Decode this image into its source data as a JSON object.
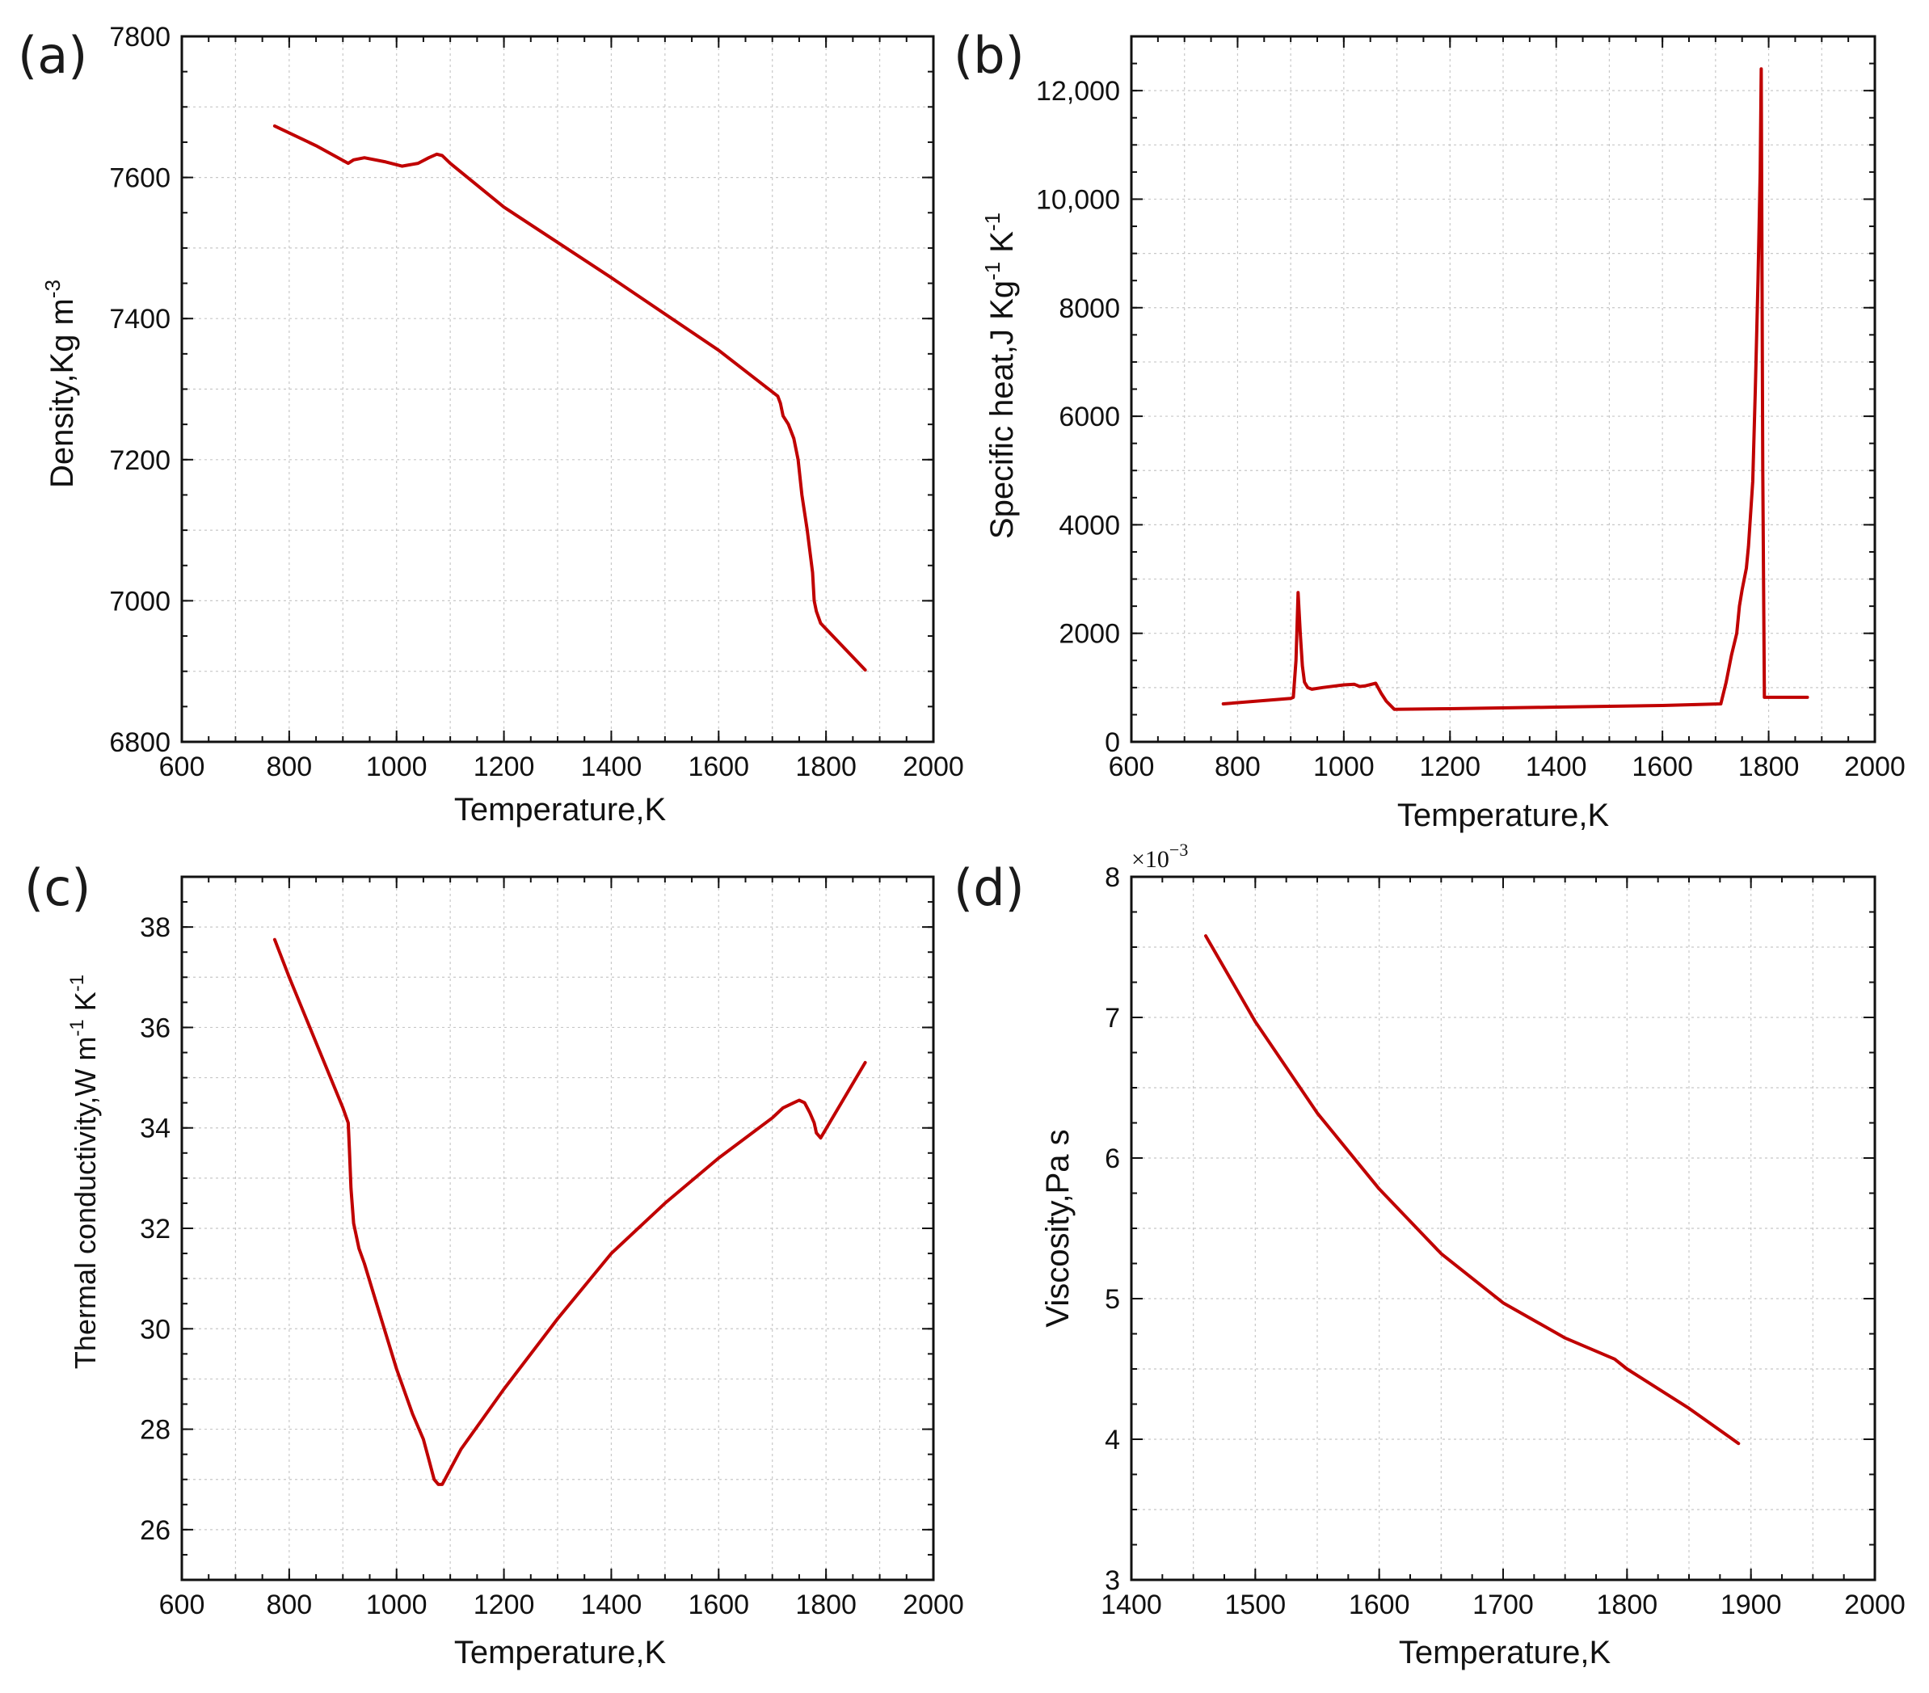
{
  "colors": {
    "series": "#c00000",
    "axis": "#111111",
    "grid": "#c8c8c8"
  },
  "chart_data": [
    {
      "id": "a",
      "panel_label": "(a)",
      "type": "line",
      "title": "",
      "xlabel": "Temperature,K",
      "ylabel": {
        "base": "Density,Kg m",
        "sup": "-3"
      },
      "xlim": [
        600,
        2000
      ],
      "ylim": [
        6800,
        7800
      ],
      "x_ticks": [
        600,
        800,
        1000,
        1200,
        1400,
        1600,
        1800,
        2000
      ],
      "y_ticks": [
        6800,
        7000,
        7200,
        7400,
        7600,
        7800
      ],
      "x_tick_labels": [
        "600",
        "800",
        "1000",
        "1200",
        "1400",
        "1600",
        "1800",
        "2000"
      ],
      "y_tick_labels": [
        "6800",
        "7000",
        "7200",
        "7400",
        "7600",
        "7800"
      ],
      "grid": true,
      "series": [
        {
          "name": "Density",
          "x": [
            773,
            850,
            910,
            920,
            940,
            980,
            1010,
            1040,
            1060,
            1075,
            1085,
            1100,
            1200,
            1400,
            1600,
            1710,
            1715,
            1720,
            1730,
            1740,
            1748,
            1755,
            1760,
            1765,
            1770,
            1775,
            1778,
            1782,
            1790,
            1873
          ],
          "y": [
            7673,
            7645,
            7620,
            7625,
            7628,
            7622,
            7616,
            7620,
            7628,
            7633,
            7631,
            7620,
            7558,
            7458,
            7355,
            7290,
            7280,
            7262,
            7250,
            7230,
            7200,
            7150,
            7125,
            7100,
            7070,
            7040,
            7000,
            6985,
            6968,
            6902
          ]
        }
      ]
    },
    {
      "id": "b",
      "panel_label": "(b)",
      "type": "line",
      "title": "",
      "xlabel": "Temperature,K",
      "ylabel": {
        "p1": "Specific heat,J Kg",
        "s1": "-1",
        "p2": " K",
        "s2": "-1"
      },
      "xlim": [
        600,
        2000
      ],
      "ylim": [
        0,
        13000
      ],
      "x_ticks": [
        600,
        800,
        1000,
        1200,
        1400,
        1600,
        1800,
        2000
      ],
      "y_ticks": [
        0,
        2000,
        4000,
        6000,
        8000,
        10000,
        12000
      ],
      "x_tick_labels": [
        "600",
        "800",
        "1000",
        "1200",
        "1400",
        "1600",
        "1800",
        "2000"
      ],
      "y_tick_labels": [
        "0",
        "2000",
        "4000",
        "6000",
        "8000",
        "10,000",
        "12,000"
      ],
      "grid": true,
      "series": [
        {
          "name": "Specific heat",
          "x": [
            773,
            900,
            905,
            910,
            914,
            918,
            922,
            926,
            932,
            940,
            960,
            1000,
            1020,
            1030,
            1040,
            1060,
            1070,
            1080,
            1095,
            1200,
            1400,
            1600,
            1710,
            1720,
            1730,
            1740,
            1745,
            1750,
            1758,
            1762,
            1770,
            1775,
            1780,
            1784,
            1786,
            1789,
            1792,
            1873
          ],
          "y": [
            700,
            800,
            820,
            1500,
            2750,
            2000,
            1400,
            1100,
            1000,
            970,
            1000,
            1050,
            1060,
            1020,
            1030,
            1080,
            900,
            750,
            600,
            610,
            640,
            670,
            700,
            1100,
            1600,
            2000,
            2500,
            2800,
            3200,
            3600,
            4800,
            6500,
            8500,
            10500,
            12400,
            5000,
            820,
            820
          ]
        }
      ]
    },
    {
      "id": "c",
      "panel_label": "(c)",
      "type": "line",
      "title": "",
      "xlabel": "Temperature,K",
      "ylabel": {
        "p1": "Thermal conductivity,W m",
        "s1": "-1",
        "p2": " K",
        "s2": "-1"
      },
      "xlim": [
        600,
        2000
      ],
      "ylim": [
        25,
        39
      ],
      "x_ticks": [
        600,
        800,
        1000,
        1200,
        1400,
        1600,
        1800,
        2000
      ],
      "y_ticks": [
        26,
        28,
        30,
        32,
        34,
        36,
        38
      ],
      "x_tick_labels": [
        "600",
        "800",
        "1000",
        "1200",
        "1400",
        "1600",
        "1800",
        "2000"
      ],
      "y_tick_labels": [
        "26",
        "28",
        "30",
        "32",
        "34",
        "36",
        "38"
      ],
      "grid": true,
      "series": [
        {
          "name": "Thermal conductivity",
          "x": [
            773,
            800,
            850,
            900,
            910,
            912,
            915,
            920,
            930,
            940,
            960,
            1000,
            1030,
            1050,
            1060,
            1070,
            1078,
            1085,
            1090,
            1100,
            1120,
            1200,
            1300,
            1400,
            1500,
            1600,
            1700,
            1720,
            1740,
            1750,
            1760,
            1770,
            1778,
            1782,
            1790,
            1873
          ],
          "y": [
            37.75,
            37.0,
            35.7,
            34.4,
            34.1,
            33.6,
            32.8,
            32.1,
            31.6,
            31.3,
            30.6,
            29.2,
            28.3,
            27.8,
            27.4,
            27.0,
            26.9,
            26.9,
            27.0,
            27.2,
            27.6,
            28.8,
            30.2,
            31.5,
            32.5,
            33.4,
            34.2,
            34.4,
            34.5,
            34.55,
            34.5,
            34.3,
            34.1,
            33.9,
            33.8,
            35.3
          ]
        }
      ]
    },
    {
      "id": "d",
      "panel_label": "(d)",
      "type": "line",
      "title": "",
      "xlabel": "Temperature,K",
      "ylabel": {
        "base": "Viscosity,Pa s"
      },
      "y_multiplier": {
        "base": "×10",
        "sup": "−3"
      },
      "xlim": [
        1400,
        2000
      ],
      "ylim": [
        3,
        8
      ],
      "x_ticks": [
        1400,
        1500,
        1600,
        1700,
        1800,
        1900,
        2000
      ],
      "y_ticks": [
        3,
        4,
        5,
        6,
        7,
        8
      ],
      "x_tick_labels": [
        "1400",
        "1500",
        "1600",
        "1700",
        "1800",
        "1900",
        "2000"
      ],
      "y_tick_labels": [
        "3",
        "4",
        "5",
        "6",
        "7",
        "8"
      ],
      "grid": true,
      "series": [
        {
          "name": "Viscosity",
          "x": [
            1460,
            1500,
            1550,
            1600,
            1650,
            1700,
            1750,
            1790,
            1800,
            1850,
            1890
          ],
          "y": [
            7.58,
            6.97,
            6.32,
            5.78,
            5.32,
            4.97,
            4.72,
            4.57,
            4.5,
            4.22,
            3.97
          ]
        }
      ]
    }
  ]
}
